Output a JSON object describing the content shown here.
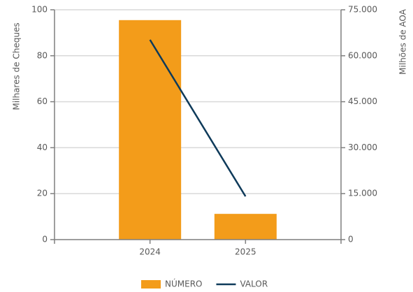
{
  "chart_data": {
    "type": "bar",
    "categories": [
      "2024",
      "2025"
    ],
    "series": [
      {
        "name": "NÚMERO",
        "type": "bar",
        "color": "#f39c1a",
        "values": [
          95.5,
          11.2
        ]
      },
      {
        "name": "VALOR",
        "type": "line",
        "axis": "y2",
        "color": "#0e3a5a",
        "values": [
          65200,
          14100
        ]
      }
    ],
    "ylabel": "Milhares de Cheques",
    "y2label": "Milhões de AOA",
    "ylim": [
      0,
      100
    ],
    "yticks": [
      0,
      20,
      40,
      60,
      80,
      100
    ],
    "y2lim": [
      0,
      75000
    ],
    "y2ticks": [
      0,
      {
        "value": 15000,
        "label": "15.000"
      },
      {
        "value": 30000,
        "label": "30.000"
      },
      {
        "value": 45000,
        "label": "45.000"
      },
      {
        "value": 60000,
        "label": "60.000"
      },
      {
        "value": 75000,
        "label": "75.000"
      }
    ],
    "grid": true,
    "legend": "bottom"
  }
}
